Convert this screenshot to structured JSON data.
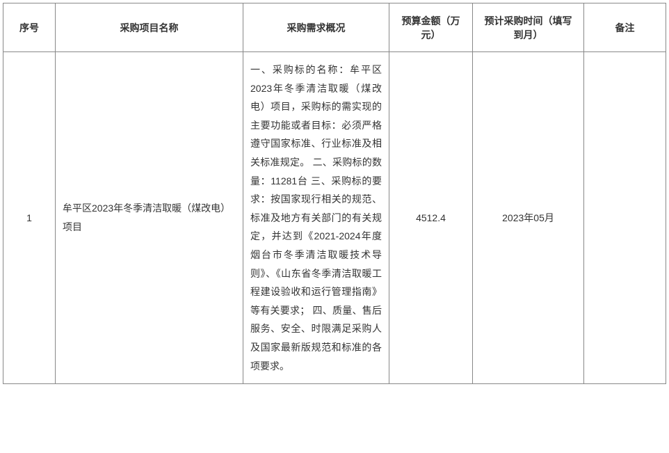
{
  "table": {
    "headers": {
      "seq": "序号",
      "projectName": "采购项目名称",
      "requirement": "采购需求概况",
      "budget": "预算金额（万元）",
      "time": "预计采购时间（填写到月）",
      "remark": "备注"
    },
    "rows": [
      {
        "seq": "1",
        "projectName": " 牟平区2023年冬季清洁取暖（煤改电）项目",
        "requirement": " 一、采购标的名称：牟平区2023年冬季清洁取暖（煤改电）项目，采购标的需实现的主要功能或者目标：必须严格遵守国家标准、行业标准及相关标准规定。 二、采购标的数量：11281台 三、采购标的要求：按国家现行相关的规范、标准及地方有关部门的有关规定，并达到《2021-2024年度烟台市冬季清洁取暖技术导则》、《山东省冬季清洁取暖工程建设验收和运行管理指南》等有关要求； 四、质量、售后服务、安全、时限满足采购人及国家最新版规范和标准的各项要求。",
        "budget": "4512.4",
        "time": "2023年05月",
        "remark": ""
      }
    ],
    "style": {
      "border_color": "#888888",
      "text_color": "#333333",
      "background_color": "#ffffff",
      "font_size": 14,
      "line_height": 1.9,
      "header_font_weight": "bold"
    }
  }
}
